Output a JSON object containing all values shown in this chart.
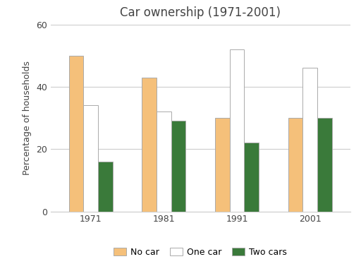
{
  "title": "Car ownership (1971-2001)",
  "ylabel": "Percentage of households",
  "years": [
    "1971",
    "1981",
    "1991",
    "2001"
  ],
  "categories": [
    "No car",
    "One car",
    "Two cars"
  ],
  "values": {
    "No car": [
      50,
      43,
      30,
      30
    ],
    "One car": [
      34,
      32,
      52,
      46
    ],
    "Two cars": [
      16,
      29,
      22,
      30
    ]
  },
  "colors": {
    "No car": "#F5C07A",
    "One car": "#FFFFFF",
    "Two cars": "#3A7A3A"
  },
  "edgecolor": "#AAAAAA",
  "ylim": [
    0,
    60
  ],
  "yticks": [
    0,
    20,
    40,
    60
  ],
  "bar_width": 0.2,
  "background_color": "#FFFFFF",
  "grid_color": "#CCCCCC",
  "title_fontsize": 12,
  "axis_label_fontsize": 9,
  "tick_fontsize": 9,
  "legend_fontsize": 9
}
